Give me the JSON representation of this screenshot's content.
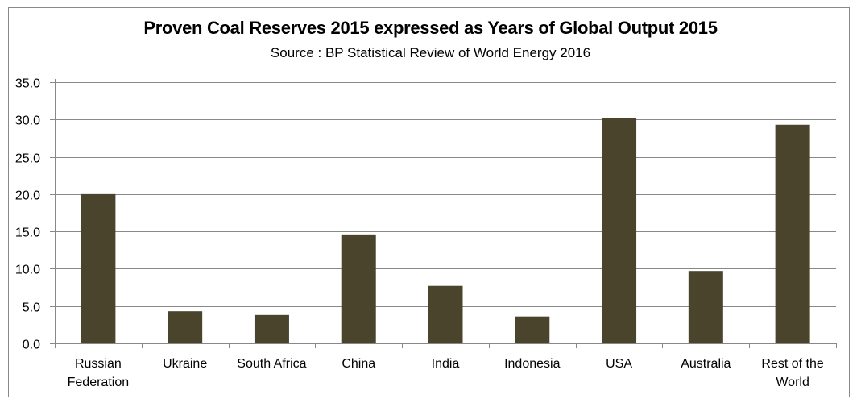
{
  "chart_data": {
    "type": "bar",
    "title": "Proven Coal Reserves 2015 expressed as Years of Global Output 2015",
    "subtitle": "Source : BP Statistical Review of World Energy 2016",
    "xlabel": "",
    "ylabel": "",
    "categories": [
      [
        "Russian",
        "Federation"
      ],
      [
        "Ukraine"
      ],
      [
        "South Africa"
      ],
      [
        "China"
      ],
      [
        "India"
      ],
      [
        "Indonesia"
      ],
      [
        "USA"
      ],
      [
        "Australia"
      ],
      [
        "Rest of the",
        "World"
      ]
    ],
    "values": [
      20.0,
      4.3,
      3.8,
      14.6,
      7.7,
      3.6,
      30.2,
      9.7,
      29.3
    ],
    "ylim": [
      0,
      35
    ],
    "yticks": [
      "0.0",
      "5.0",
      "10.0",
      "15.0",
      "20.0",
      "25.0",
      "30.0",
      "35.0"
    ],
    "ytick_values": [
      0,
      5,
      10,
      15,
      20,
      25,
      30,
      35
    ],
    "grid": true,
    "legend": "none",
    "bar_color": "#4a442d",
    "grid_color": "#888888"
  }
}
